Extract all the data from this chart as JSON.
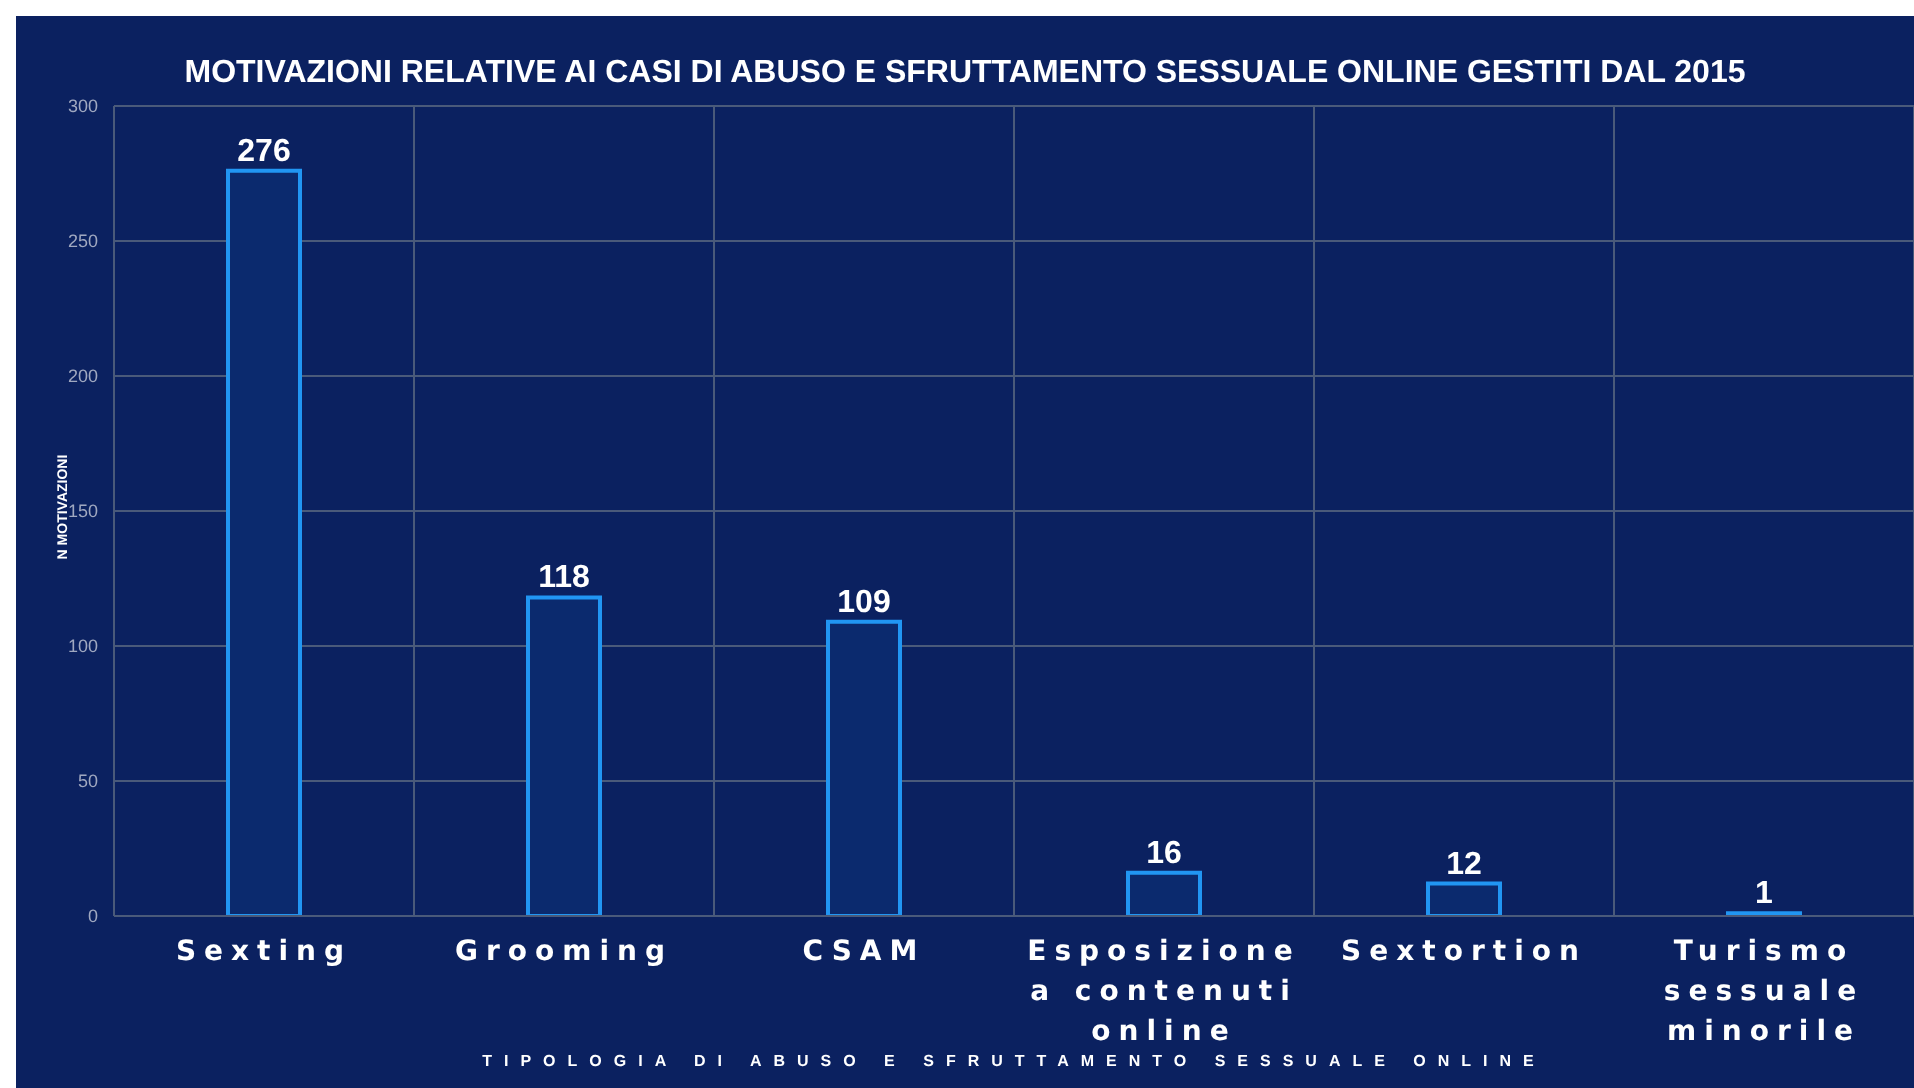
{
  "chart_data": {
    "type": "bar",
    "title": "MOTIVAZIONI RELATIVE AI CASI DI ABUSO E SFRUTTAMENTO SESSUALE ONLINE GESTITI DAL 2015",
    "xlabel": "TIPOLOGIA DI ABUSO E SFRUTTAMENTO SESSUALE ONLINE",
    "ylabel": "N MOTIVAZIONI",
    "categories": [
      "Sexting",
      "Grooming",
      "CSAM",
      "Esposizione a contenuti online",
      "Sextortion",
      "Turismo sessuale minorile"
    ],
    "values": [
      276,
      118,
      109,
      16,
      12,
      1
    ],
    "color": "#2196f3",
    "ylim": [
      0,
      300
    ],
    "yticks": [
      0,
      50,
      100,
      150,
      200,
      250,
      300
    ],
    "grid": true,
    "data_labels": true
  }
}
